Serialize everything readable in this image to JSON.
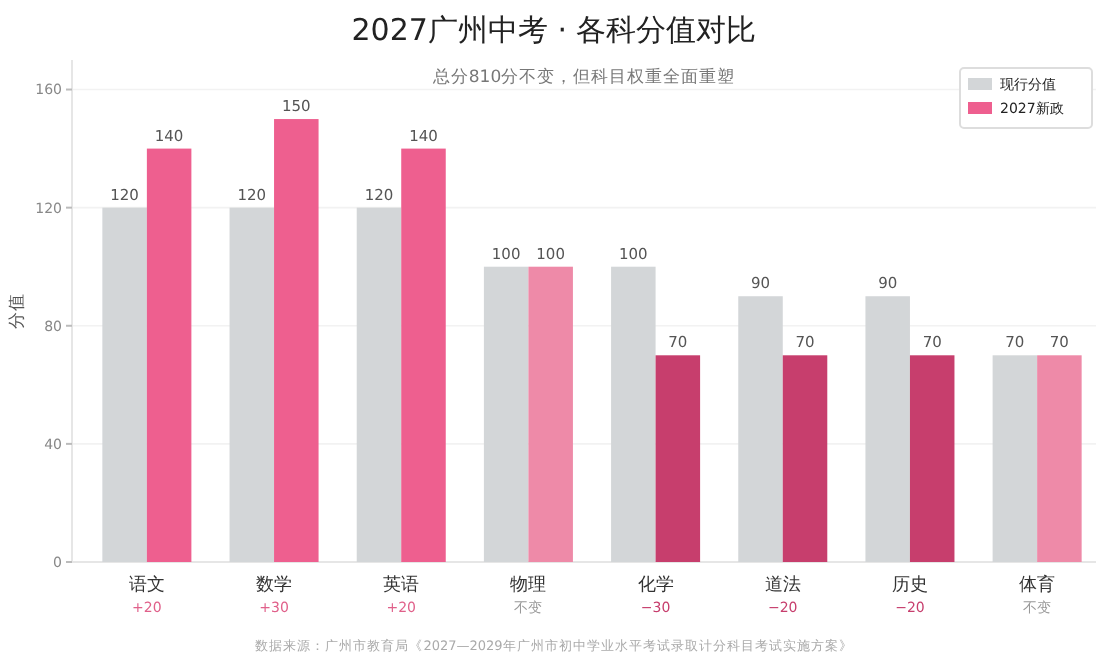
{
  "chart_data": {
    "type": "bar",
    "title": "2027广州中考 · 各科分值对比",
    "subtitle": "总分810分不变，但科目权重全面重塑",
    "ylabel": "分值",
    "categories": [
      "语文",
      "数学",
      "英语",
      "物理",
      "化学",
      "道法",
      "历史",
      "体育"
    ],
    "series": [
      {
        "name": "现行分值",
        "color": "#d3d6d8",
        "values": [
          120,
          120,
          120,
          100,
          100,
          90,
          90,
          70
        ]
      },
      {
        "name": "2027新政",
        "color": "#ee5f8f",
        "colors": [
          "#ee5f8f",
          "#ee5f8f",
          "#ee5f8f",
          "#ee8aa8",
          "#c73e6d",
          "#c73e6d",
          "#c73e6d",
          "#ee8aa8"
        ],
        "values": [
          140,
          150,
          140,
          100,
          70,
          70,
          70,
          70
        ]
      }
    ],
    "ylim": [
      0,
      170
    ],
    "yticks": [
      0,
      40,
      80,
      120,
      160
    ],
    "grid": "y",
    "legend": "top right",
    "data_labels": true,
    "annotations": [
      "+20",
      "+30",
      "+20",
      "不变",
      "−30",
      "−20",
      "−20",
      "不变",
      "数据来源：广州市教育局《2027—2029年广州市初中学业水平考试录取计分科目考试实施方案》"
    ]
  }
}
